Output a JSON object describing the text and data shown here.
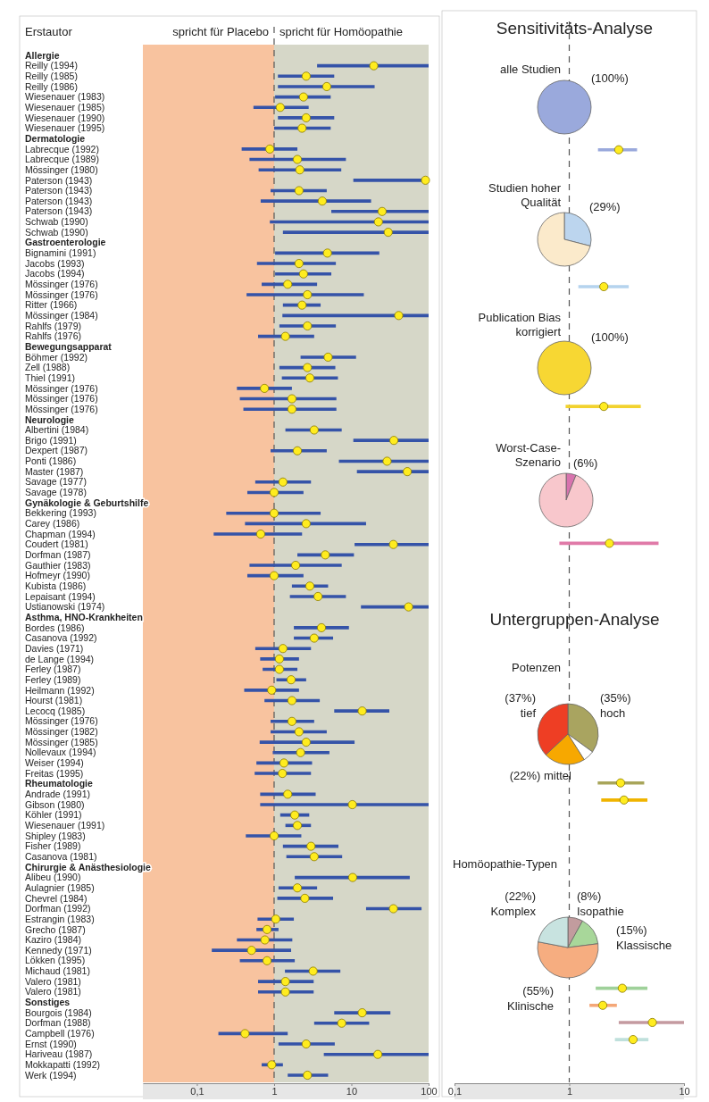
{
  "chart_data": [
    {
      "type": "scatter",
      "orientation": "horizontal",
      "ylabel": "Erstautor",
      "marker": "circle",
      "categories": [
        "Allergie",
        "Reilly (1994)",
        "Reilly (1985)",
        "Reilly (1986)",
        "Wiesenauer (1983)",
        "Wiesenauer (1985)",
        "Wiesenauer (1990)",
        "Wiesenauer (1995)",
        "Dermatologie",
        "Labrecque (1992)",
        "Labrecque (1989)",
        "Mössinger (1980)",
        "Paterson (1943)",
        "Paterson (1943)",
        "Paterson (1943)",
        "Paterson (1943)",
        "Schwab (1990)",
        "Schwab (1990)",
        "Gastroenterologie",
        "Bignamini (1991)",
        "Jacobs (1993)",
        "Jacobs (1994)",
        "Mössinger (1976)",
        "Mössinger (1976)",
        "Ritter (1966)",
        "Mössinger (1984)",
        "Rahlfs (1979)",
        "Rahlfs (1976)",
        "Bewegungsapparat",
        "Böhmer (1992)",
        "Zell (1988)",
        "Thiel (1991)",
        "Mössinger (1976)",
        "Mössinger (1976)",
        "Mössinger (1976)",
        "Neurologie",
        "Albertini (1984)",
        "Brigo (1991)",
        "Dexpert (1987)",
        "Ponti (1986)",
        "Master (1987)",
        "Savage (1977)",
        "Savage (1978)",
        "Gynäkologie & Geburtshilfe",
        "Bekkering (1993)",
        "Carey (1986)",
        "Chapman (1994)",
        "Coudert (1981)",
        "Dorfman (1987)",
        "Gauthier (1983)",
        "Hofmeyr (1990)",
        "Kubista (1986)",
        "Lepaisant (1994)",
        "Ustianowski (1974)",
        "Asthma, HNO-Krankheiten",
        "Bordes (1986)",
        "Casanova (1992)",
        "Davies (1971)",
        "de Lange (1994)",
        "Ferley (1987)",
        "Ferley (1989)",
        "Heilmann (1992)",
        "Hourst (1981)",
        "Lecocq (1985)",
        "Mössinger (1976)",
        "Mössinger (1982)",
        "Mössinger (1985)",
        "Nollevaux (1994)",
        "Weiser (1994)",
        "Freitas (1995)",
        "Rheumatologie",
        "Andrade (1991)",
        "Gibson (1980)",
        "Köhler (1991)",
        "Wiesenauer (1991)",
        "Shipley (1983)",
        "Fisher (1989)",
        "Casanova (1981)",
        "Chirurgie & Anästhesiologie",
        "Alibeu (1990)",
        "Aulagnier (1985)",
        "Chevrel (1984)",
        "Dorfman (1992)",
        "Estrangin (1983)",
        "Grecho (1987)",
        "Kaziro (1984)",
        "Kennedy (1971)",
        "Lökken (1995)",
        "Michaud (1981)",
        "Valero (1981)",
        "Valero (1981)",
        "Sonstiges",
        "Bourgois (1984)",
        "Dorfman (1988)",
        "Campbell (1976)",
        "Ernst (1990)",
        "Hariveau (1987)",
        "Mokkapatti (1992)",
        "Werk (1994)"
      ],
      "series": [
        {
          "color": "#ffec1f",
          "values": [
            null,
            19.5,
            2.6,
            4.8,
            2.4,
            1.2,
            2.6,
            2.3,
            null,
            0.88,
            2,
            2.15,
            91,
            2.1,
            4.2,
            25,
            22.4,
            30,
            null,
            4.9,
            2.1,
            2.4,
            1.5,
            2.7,
            2.3,
            41,
            2.7,
            1.4,
            null,
            5,
            2.7,
            2.9,
            0.75,
            1.7,
            1.7,
            null,
            3.3,
            35.5,
            2,
            29,
            53,
            1.3,
            1,
            null,
            1,
            2.6,
            0.67,
            35,
            4.6,
            1.9,
            1,
            2.9,
            3.7,
            55,
            null,
            4.1,
            3.3,
            1.3,
            1.17,
            1.17,
            1.66,
            0.93,
            1.7,
            13.8,
            1.7,
            2.1,
            2.6,
            2.2,
            1.34,
            1.28,
            null,
            1.5,
            10.3,
            1.85,
            2,
            1,
            3,
            3.3,
            null,
            10.4,
            2,
            2.5,
            35,
            1.05,
            0.81,
            0.76,
            0.51,
            0.81,
            3.2,
            1.4,
            1.4,
            null,
            13.8,
            7.5,
            0.42,
            2.6,
            22,
            0.93,
            2.7
          ],
          "errors": [
            null,
            [
              3.6,
              100
            ],
            [
              1.12,
              6
            ],
            [
              1.12,
              20
            ],
            [
              1.03,
              5.4
            ],
            [
              0.54,
              2.8
            ],
            [
              1.12,
              6
            ],
            [
              1,
              5.4
            ],
            null,
            [
              0.38,
              2
            ],
            [
              0.48,
              8.5
            ],
            [
              0.63,
              7.4
            ],
            [
              10.6,
              100
            ],
            [
              0.9,
              4.8
            ],
            [
              0.67,
              18
            ],
            [
              5.5,
              100
            ],
            [
              0.88,
              100
            ],
            [
              1.3,
              100
            ],
            null,
            [
              1.03,
              23
            ],
            [
              0.6,
              6.3
            ],
            [
              1.03,
              5.5
            ],
            [
              0.69,
              3.6
            ],
            [
              0.44,
              14.5
            ],
            [
              1.3,
              4
            ],
            [
              1.28,
              100
            ],
            [
              1.17,
              6.3
            ],
            [
              0.62,
              3.3
            ],
            null,
            [
              2.2,
              11.5
            ],
            [
              1.17,
              6.2
            ],
            [
              1.26,
              6.7
            ],
            [
              0.33,
              1.7
            ],
            [
              0.36,
              6.4
            ],
            [
              0.4,
              6.4
            ],
            null,
            [
              1.4,
              7.5
            ],
            [
              10.6,
              100
            ],
            [
              0.9,
              4.8
            ],
            [
              6.9,
              100
            ],
            [
              11.8,
              100
            ],
            [
              0.57,
              3
            ],
            [
              0.45,
              2.4
            ],
            null,
            [
              0.24,
              4
            ],
            [
              0.42,
              15.5
            ],
            [
              0.165,
              2.3
            ],
            [
              11,
              100
            ],
            [
              2,
              10.8
            ],
            [
              0.48,
              7.5
            ],
            [
              0.45,
              2.4
            ],
            [
              1.7,
              5
            ],
            [
              1.6,
              8.5
            ],
            [
              13.3,
              100
            ],
            null,
            [
              1.8,
              9.3
            ],
            [
              1.8,
              5.8
            ],
            [
              0.57,
              3
            ],
            [
              0.66,
              2.1
            ],
            [
              0.71,
              2
            ],
            [
              1.07,
              2.6
            ],
            [
              0.41,
              2.1
            ],
            [
              0.75,
              3.9
            ],
            [
              6,
              31
            ],
            [
              0.9,
              3.3
            ],
            [
              0.9,
              4.8
            ],
            [
              0.65,
              11
            ],
            [
              0.96,
              5.2
            ],
            [
              0.59,
              3.1
            ],
            [
              0.56,
              3
            ],
            null,
            [
              0.66,
              3.45
            ],
            [
              0.66,
              100
            ],
            [
              1.2,
              2.85
            ],
            [
              1.4,
              3
            ],
            [
              0.43,
              2.25
            ],
            [
              1.3,
              6.8
            ],
            [
              1.44,
              7.6
            ],
            null,
            [
              1.85,
              57
            ],
            [
              1.14,
              3.6
            ],
            [
              1.1,
              5.8
            ],
            [
              15.5,
              81
            ],
            [
              0.61,
              1.8
            ],
            [
              0.59,
              1.14
            ],
            [
              0.33,
              1.72
            ],
            [
              0.156,
              1.66
            ],
            [
              0.36,
              1.85
            ],
            [
              1.38,
              7.2
            ],
            [
              0.62,
              3.25
            ],
            [
              0.62,
              3.25
            ],
            null,
            [
              6,
              32
            ],
            [
              3.3,
              17
            ],
            [
              0.19,
              1.5
            ],
            [
              1.14,
              6.1
            ],
            [
              4.4,
              100
            ],
            [
              0.69,
              1.3
            ],
            [
              1.5,
              5
            ]
          ]
        }
      ],
      "log": "x",
      "xlim": [
        0.02,
        100
      ],
      "xticks": [
        {
          "value": 0.1,
          "label": "0,1"
        },
        1,
        10,
        100
      ],
      "ref_lines": [
        {
          "axis": "x",
          "value": 1,
          "line_style": "dashed"
        }
      ],
      "bands": [
        {
          "axis": "x",
          "from": 0.02,
          "to": 1,
          "label": "spricht für Placebo",
          "color": "#f07a2a"
        },
        {
          "axis": "x",
          "from": 1,
          "to": 100,
          "label": "spricht für Homöopathie",
          "color": "#a3a684"
        }
      ]
    },
    {
      "type": "scatter",
      "orientation": "horizontal",
      "title": "Sensitivitäts-Analyse",
      "annotations": [
        "Untergruppen-Analyse"
      ],
      "marker": "circle",
      "categories": [
        null,
        null,
        null,
        null,
        null,
        null,
        null,
        null,
        null,
        null,
        null,
        null,
        null,
        null,
        null,
        null,
        null,
        null,
        null,
        null,
        null,
        null,
        null,
        null,
        null,
        null,
        null,
        null,
        null,
        null,
        null,
        null,
        null,
        null,
        null,
        null,
        null,
        null,
        null,
        null,
        null,
        null,
        null,
        null,
        null,
        null,
        null,
        null,
        null,
        null,
        null,
        null,
        null,
        null,
        null,
        null,
        null,
        null,
        null,
        null,
        null,
        null
      ],
      "series": [
        {
          "color": "#ffec1f",
          "values": [
            null,
            null,
            null,
            null,
            null,
            null,
            null,
            2.7,
            null,
            null,
            null,
            null,
            null,
            null,
            null,
            2,
            null,
            null,
            null,
            null,
            null,
            null,
            2,
            null,
            null,
            null,
            null,
            null,
            null,
            null,
            2.24,
            null,
            null,
            null,
            null,
            null,
            null,
            null,
            null,
            null,
            null,
            null,
            null,
            null,
            2.8,
            3,
            null,
            null,
            null,
            null,
            null,
            null,
            null,
            null,
            null,
            null,
            2.9,
            1.96,
            5.3,
            3.6,
            null,
            null
          ],
          "errors": [
            null,
            null,
            null,
            null,
            null,
            null,
            null,
            [
              1.78,
              3.9
            ],
            null,
            null,
            null,
            null,
            null,
            null,
            null,
            [
              1.2,
              3.3
            ],
            null,
            null,
            null,
            null,
            null,
            null,
            [
              0.93,
              4.2
            ],
            null,
            null,
            null,
            null,
            null,
            null,
            null,
            [
              0.82,
              6
            ],
            null,
            null,
            null,
            null,
            null,
            null,
            null,
            null,
            null,
            null,
            null,
            null,
            null,
            [
              1.77,
              4.5
            ],
            [
              1.9,
              4.8
            ],
            null,
            null,
            null,
            null,
            null,
            null,
            null,
            null,
            null,
            null,
            [
              1.7,
              4.8
            ],
            [
              1.5,
              2.6
            ],
            [
              2.7,
              10
            ],
            [
              2.5,
              4.9
            ],
            null,
            null
          ]
        }
      ],
      "log": "x",
      "xlim": [
        0.1,
        10
      ],
      "xticks": [
        {
          "value": 0.1,
          "label": "0,1"
        },
        1,
        10
      ],
      "ref_lines": [
        {
          "axis": "x",
          "value": 1,
          "line_style": "dashed"
        }
      ]
    },
    {
      "type": "pie",
      "title": "alle Studien",
      "categories": [
        null
      ],
      "values": [
        100
      ],
      "colors": [
        "#9aa9dc"
      ],
      "value_labels": [
        "(100%)"
      ]
    },
    {
      "type": "pie",
      "title": "Studien hoher Qualität",
      "categories": [
        null,
        null
      ],
      "values": [
        29,
        71
      ],
      "colors": [
        "#bcd5ee",
        "#fbeacb"
      ],
      "value_labels": [
        "(29%)",
        null
      ]
    },
    {
      "type": "pie",
      "title": "Publication Bias korrigiert",
      "categories": [
        null
      ],
      "values": [
        100
      ],
      "colors": [
        "#f7d733"
      ],
      "value_labels": [
        "(100%)"
      ]
    },
    {
      "type": "pie",
      "title": "Worst-Case-Szenario",
      "categories": [
        null,
        null
      ],
      "values": [
        6,
        94
      ],
      "colors": [
        "#d873ae",
        "#f8c7cc"
      ],
      "value_labels": [
        "(6%)",
        null
      ]
    },
    {
      "type": "pie",
      "title": "Potenzen",
      "categories": [
        "hoch",
        null,
        "mittel",
        "tief"
      ],
      "values": [
        35,
        6,
        22,
        37
      ],
      "colors": [
        "#a9a460",
        "#ffffff",
        "#f7a800",
        "#ee3e24"
      ],
      "value_labels": [
        "(35%)",
        null,
        "(22%)",
        "(37%)"
      ]
    },
    {
      "type": "pie",
      "title": "Homöopathie-Typen",
      "categories": [
        "Isopathie",
        "Klassische",
        "Klinische",
        "Komplex"
      ],
      "values": [
        8,
        15,
        55,
        22
      ],
      "colors": [
        "#c29c9e",
        "#a8d79a",
        "#f6ad80",
        "#c8e3e0"
      ],
      "value_labels": [
        "(8%)",
        "(15%)",
        "(55%)",
        "(22%)"
      ]
    }
  ]
}
